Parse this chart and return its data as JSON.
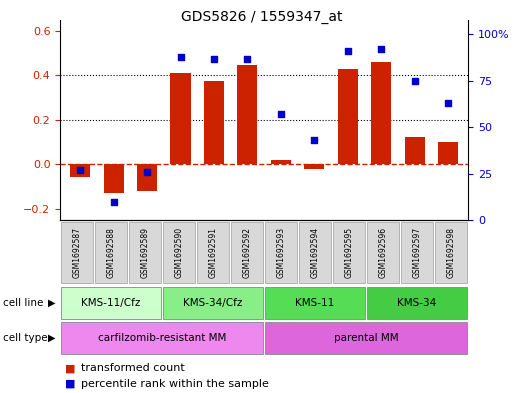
{
  "title": "GDS5826 / 1559347_at",
  "samples": [
    "GSM1692587",
    "GSM1692588",
    "GSM1692589",
    "GSM1692590",
    "GSM1692591",
    "GSM1692592",
    "GSM1692593",
    "GSM1692594",
    "GSM1692595",
    "GSM1692596",
    "GSM1692597",
    "GSM1692598"
  ],
  "transformed_count": [
    -0.055,
    -0.13,
    -0.12,
    0.41,
    0.375,
    0.445,
    0.02,
    -0.02,
    0.43,
    0.46,
    0.125,
    0.1
  ],
  "percentile_rank": [
    27,
    10,
    26,
    88,
    87,
    87,
    57,
    43,
    91,
    92,
    75,
    63
  ],
  "ylim_left": [
    -0.25,
    0.65
  ],
  "ylim_right": [
    0,
    108.0
  ],
  "yticks_left": [
    -0.2,
    0.0,
    0.2,
    0.4,
    0.6
  ],
  "yticks_right": [
    0,
    25,
    50,
    75,
    100
  ],
  "ytick_labels_right": [
    "0",
    "25",
    "50",
    "75",
    "100%"
  ],
  "bar_color": "#cc2200",
  "dot_color": "#0000cc",
  "zero_line_color": "#cc2200",
  "cell_line_groups": [
    {
      "label": "KMS-11/Cfz",
      "start": 0,
      "end": 3,
      "color": "#ccffcc"
    },
    {
      "label": "KMS-34/Cfz",
      "start": 3,
      "end": 6,
      "color": "#88ee88"
    },
    {
      "label": "KMS-11",
      "start": 6,
      "end": 9,
      "color": "#55dd55"
    },
    {
      "label": "KMS-34",
      "start": 9,
      "end": 12,
      "color": "#44cc44"
    }
  ],
  "cell_type_groups": [
    {
      "label": "carfilzomib-resistant MM",
      "start": 0,
      "end": 6,
      "color": "#ee88ee"
    },
    {
      "label": "parental MM",
      "start": 6,
      "end": 12,
      "color": "#dd66dd"
    }
  ],
  "legend_bar_label": "transformed count",
  "legend_dot_label": "percentile rank within the sample",
  "sample_box_color": "#d8d8d8",
  "bg_color": "#ffffff"
}
